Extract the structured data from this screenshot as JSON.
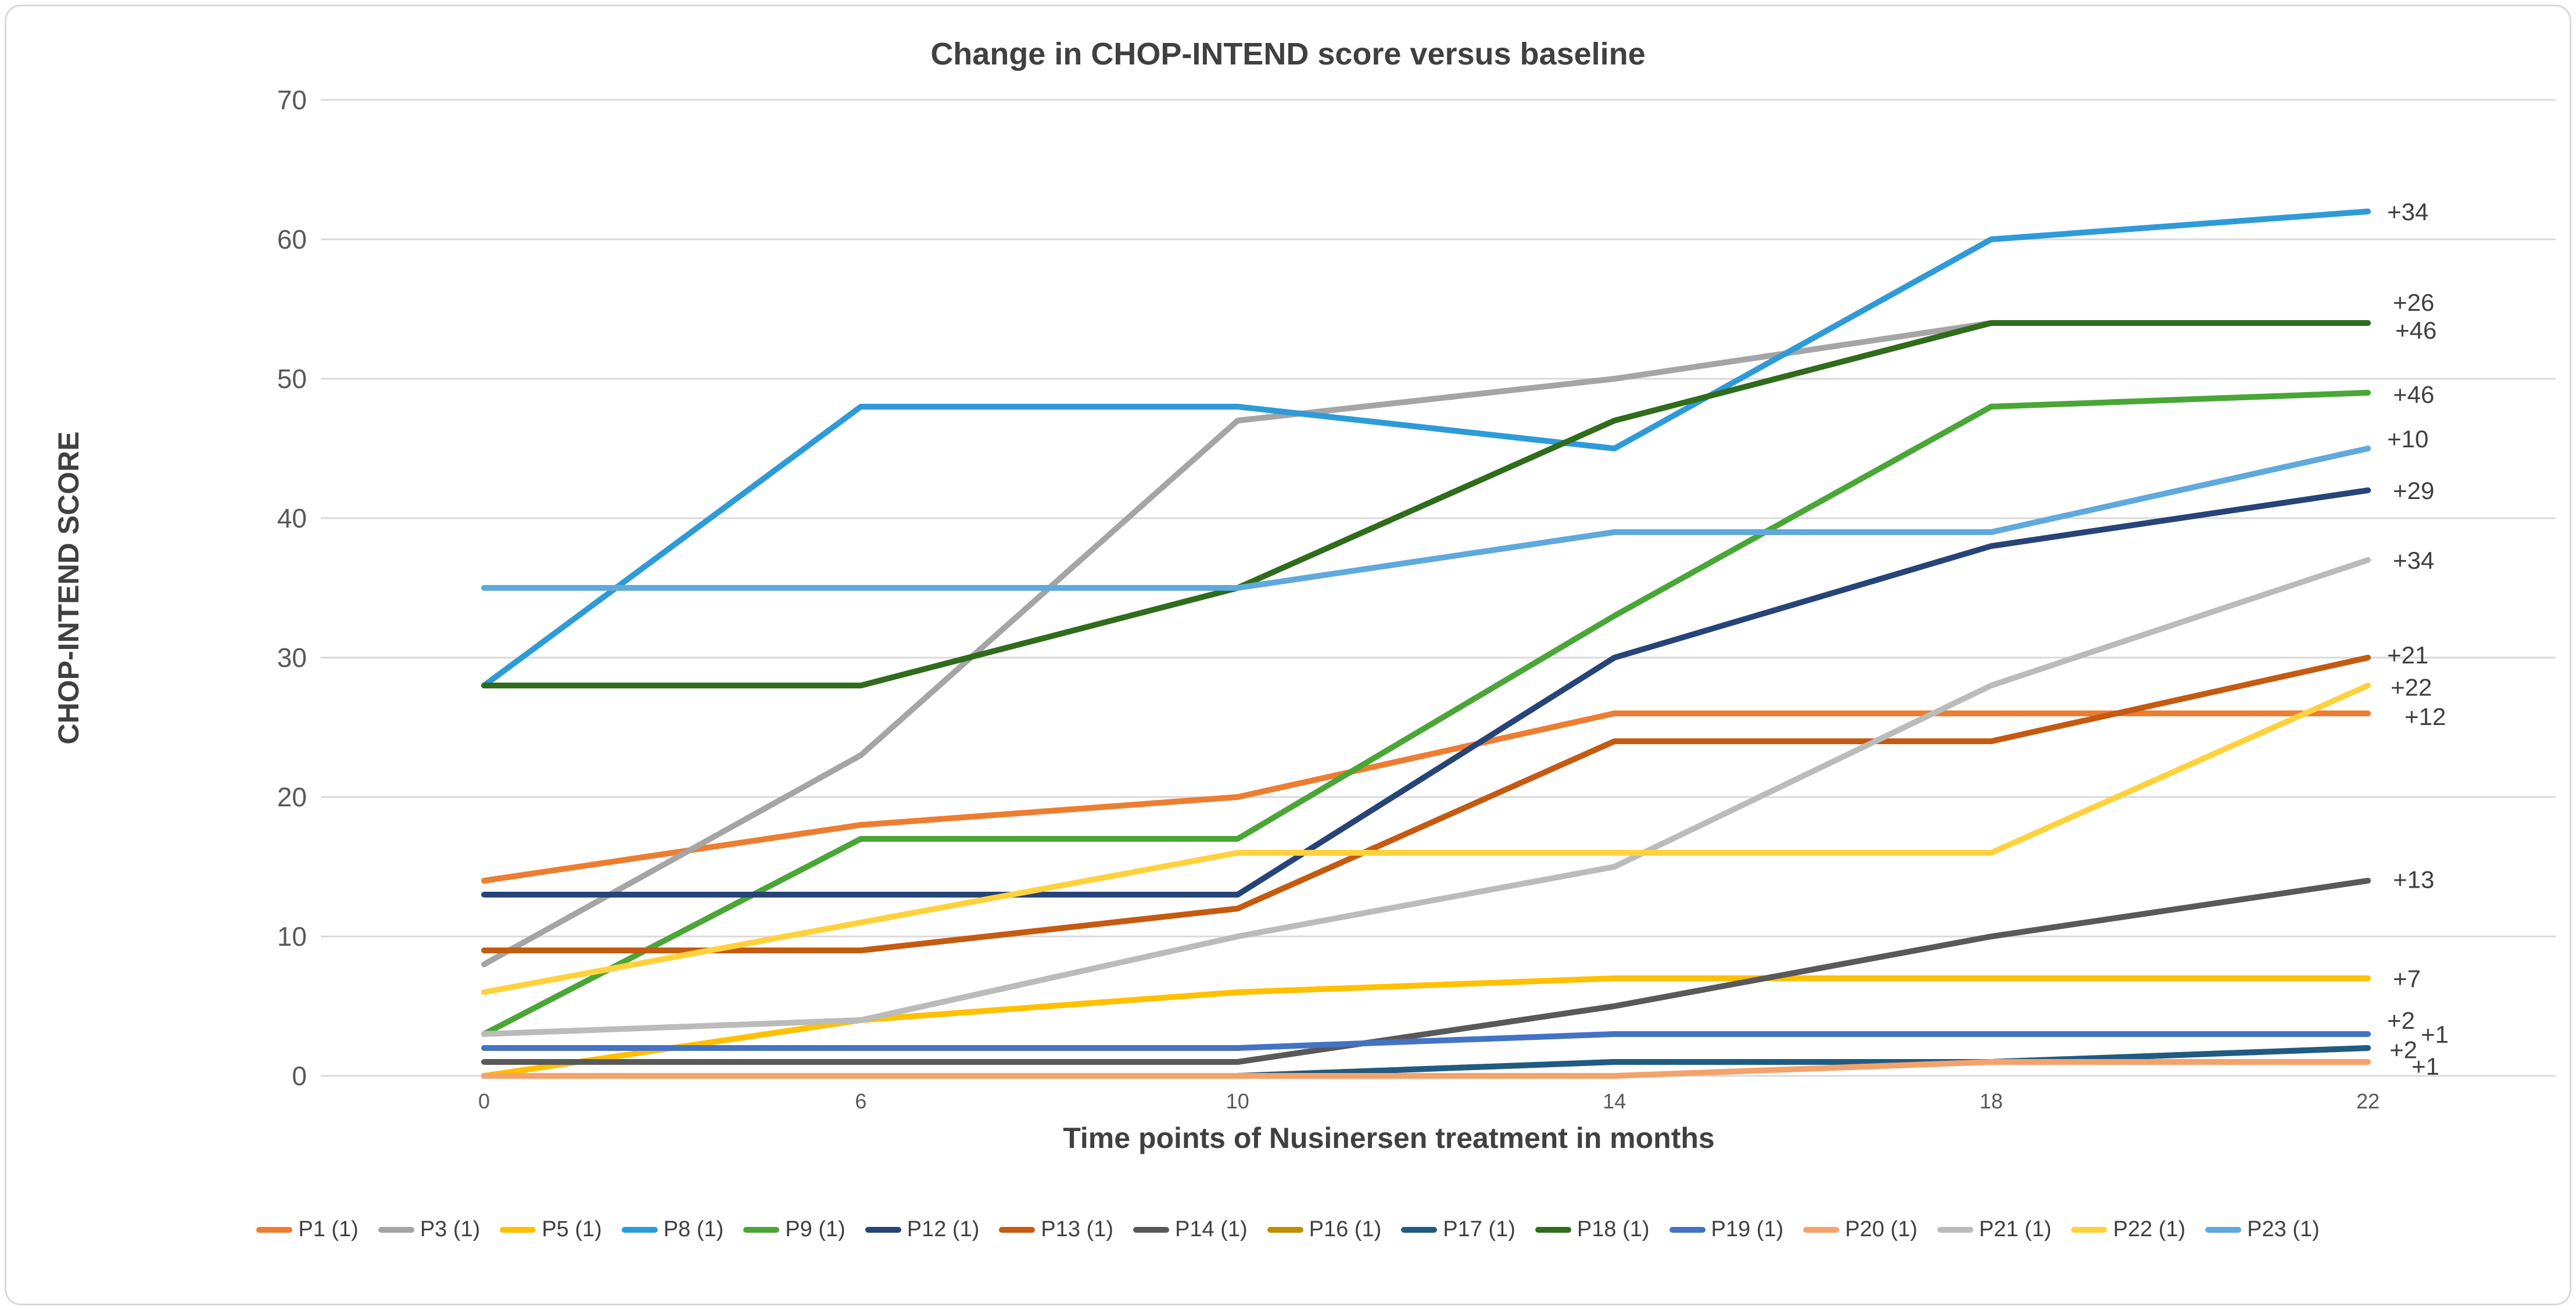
{
  "title": "Change in CHOP-INTEND score versus baseline",
  "y_axis": {
    "title": "CHOP-INTEND SCORE"
  },
  "x_axis": {
    "title": "Time points of Nusinersen treatment in months"
  },
  "chart_data": {
    "type": "line",
    "title": "Change in CHOP-INTEND score versus baseline",
    "xlabel": "Time points of Nusinersen treatment in months",
    "ylabel": "CHOP-INTEND SCORE",
    "x": [
      "0",
      "6",
      "10",
      "14",
      "18",
      "22"
    ],
    "ylim": [
      0,
      70
    ],
    "ytick_step": 10,
    "grid": "horizontal",
    "legend_position": "bottom",
    "series": [
      {
        "name": "P1 (1)",
        "color": "#ED7D31",
        "values": [
          14,
          18,
          20,
          26,
          26,
          26
        ],
        "change": "+12"
      },
      {
        "name": "P3 (1)",
        "color": "#A5A5A5",
        "values": [
          8,
          23,
          47,
          50,
          54,
          54
        ],
        "change": "+46"
      },
      {
        "name": "P5 (1)",
        "color": "#FFC000",
        "values": [
          0,
          4,
          6,
          7,
          7,
          7
        ],
        "change": "+7"
      },
      {
        "name": "P8 (1)",
        "color": "#2E9BD8",
        "values": [
          28,
          48,
          48,
          45,
          60,
          62
        ],
        "change": "+34"
      },
      {
        "name": "P9 (1)",
        "color": "#4AA637",
        "values": [
          3,
          17,
          17,
          33,
          48,
          49
        ],
        "change": "+46"
      },
      {
        "name": "P12 (1)",
        "color": "#264478",
        "values": [
          13,
          13,
          13,
          30,
          38,
          42
        ],
        "change": "+29"
      },
      {
        "name": "P13 (1)",
        "color": "#C55A11",
        "values": [
          9,
          9,
          12,
          24,
          24,
          30
        ],
        "change": "+21"
      },
      {
        "name": "P14 (1)",
        "color": "#595959",
        "values": [
          1,
          1,
          1,
          5,
          10,
          14
        ],
        "change": "+13"
      },
      {
        "name": "P16 (1)",
        "color": "#BF8F00",
        "values": [
          0,
          0,
          0,
          1,
          1,
          2
        ],
        "change": "+2"
      },
      {
        "name": "P17 (1)",
        "color": "#1F5B83",
        "values": [
          0,
          0,
          0,
          1,
          1,
          2
        ],
        "change": "+2"
      },
      {
        "name": "P18 (1)",
        "color": "#2F6C1C",
        "values": [
          28,
          28,
          35,
          47,
          54,
          54
        ],
        "change": "+26"
      },
      {
        "name": "P19 (1)",
        "color": "#4472C4",
        "values": [
          2,
          2,
          2,
          3,
          3,
          3
        ],
        "change": "+1"
      },
      {
        "name": "P20 (1)",
        "color": "#F4A26B",
        "values": [
          0,
          0,
          0,
          0,
          1,
          1
        ],
        "change": "+1"
      },
      {
        "name": "P21 (1)",
        "color": "#BBBBBB",
        "values": [
          3,
          4,
          10,
          15,
          28,
          37
        ],
        "change": "+34"
      },
      {
        "name": "P22 (1)",
        "color": "#FFD23D",
        "values": [
          6,
          11,
          16,
          16,
          16,
          28
        ],
        "change": "+22"
      },
      {
        "name": "P23 (1)",
        "color": "#5FA9DC",
        "values": [
          35,
          35,
          35,
          39,
          39,
          45
        ],
        "change": "+10"
      }
    ],
    "annotations": [
      {
        "text": "+34",
        "value": 62.0,
        "dx": 0
      },
      {
        "text": "+26",
        "value": 55.5,
        "dx": 10
      },
      {
        "text": "+46",
        "value": 53.5,
        "dx": 14
      },
      {
        "text": "+46",
        "value": 48.9,
        "dx": 10
      },
      {
        "text": "+10",
        "value": 45.7,
        "dx": 0
      },
      {
        "text": "+29",
        "value": 42.0,
        "dx": 10
      },
      {
        "text": "+34",
        "value": 37.0,
        "dx": 10
      },
      {
        "text": "+21",
        "value": 30.2,
        "dx": 0
      },
      {
        "text": "+22",
        "value": 27.9,
        "dx": 6
      },
      {
        "text": "+12",
        "value": 25.8,
        "dx": 30
      },
      {
        "text": "+13",
        "value": 14.1,
        "dx": 10
      },
      {
        "text": "+7",
        "value": 7.0,
        "dx": 10
      },
      {
        "text": "+2",
        "value": 4.0,
        "dx": 0
      },
      {
        "text": "+1",
        "value": 3.0,
        "dx": 58
      },
      {
        "text": "+2",
        "value": 1.9,
        "dx": 4
      },
      {
        "text": "+1",
        "value": 0.7,
        "dx": 42
      }
    ],
    "style": {
      "grid_color": "#D9D9D9",
      "tick_color": "#595959",
      "label_color": "#404040",
      "line_width": 10
    }
  }
}
